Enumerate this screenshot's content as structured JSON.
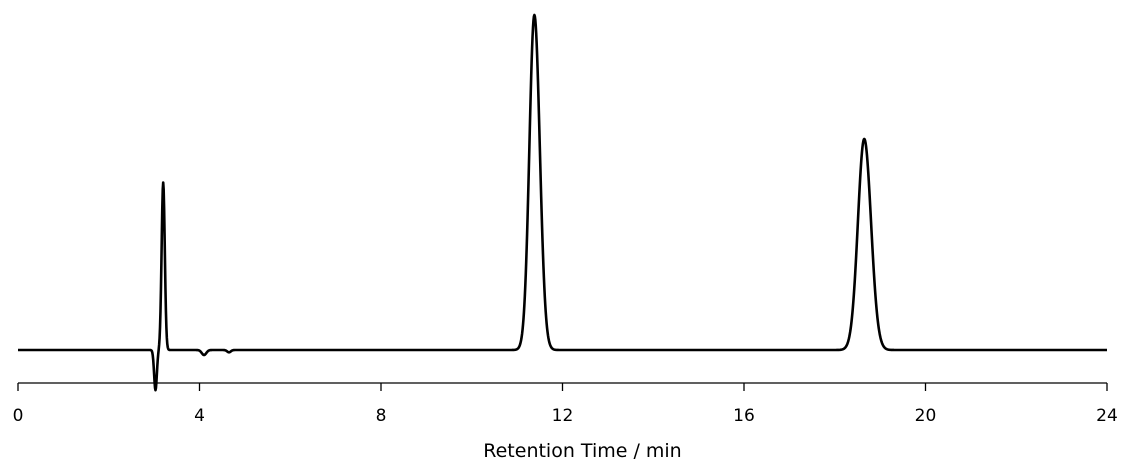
{
  "chart_data": {
    "type": "line",
    "title": "",
    "xlabel": "Retention Time / min",
    "ylabel": "",
    "xlim": [
      0,
      24
    ],
    "xticks": [
      0,
      4,
      8,
      12,
      16,
      20,
      24
    ],
    "grid": false,
    "legend": "none",
    "line_color": "#000000",
    "series": [
      {
        "peaks": [
          {
            "rt": 3.03,
            "height": -0.12,
            "width": 0.03
          },
          {
            "rt": 3.2,
            "height": 0.5,
            "width": 0.035
          },
          {
            "rt": 4.1,
            "height": -0.015,
            "width": 0.05
          },
          {
            "rt": 4.65,
            "height": -0.007,
            "width": 0.04
          },
          {
            "rt": 11.38,
            "height": 1.0,
            "width": 0.11,
            "tail": 0.12
          },
          {
            "rt": 18.65,
            "height": 0.63,
            "width": 0.14,
            "tail": 0.15
          }
        ]
      }
    ]
  }
}
